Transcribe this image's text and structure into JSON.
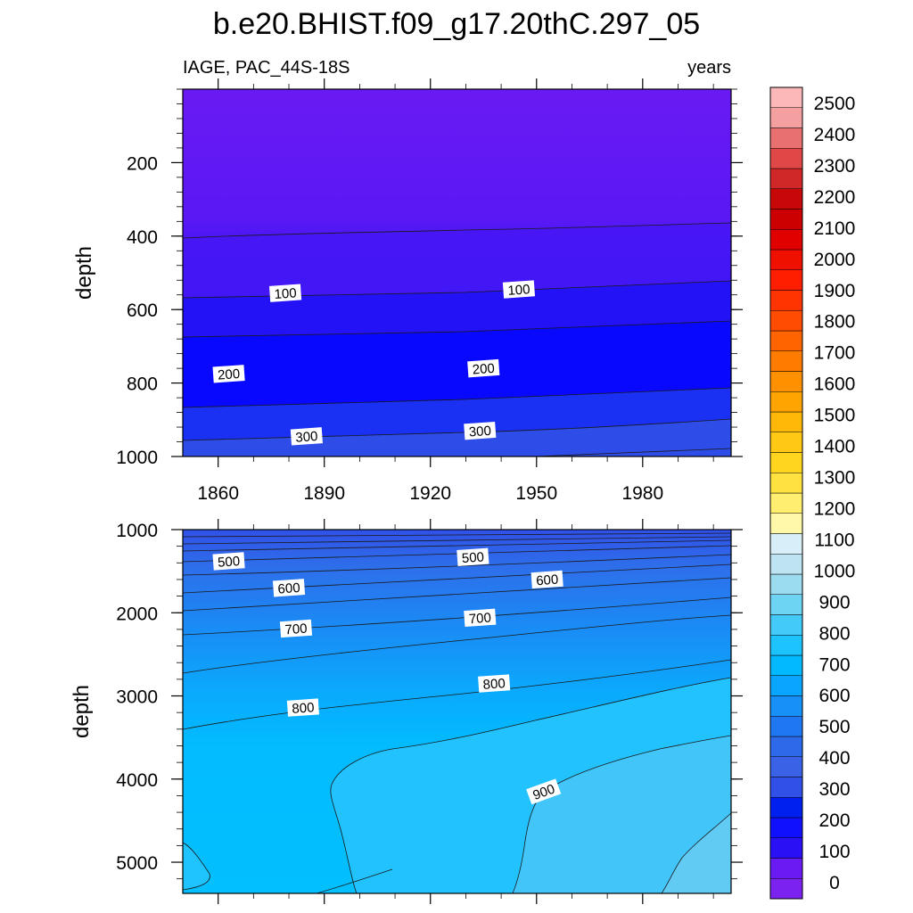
{
  "chart_data": {
    "type": "contour",
    "title": "b.e20.BHIST.f09_g17.20thC.297_05",
    "subtitle_left": "IAGE, PAC_44S-18S",
    "subtitle_right": "years",
    "ylabel": "depth",
    "xlim": [
      1850,
      2005
    ],
    "x_ticks": [
      1860,
      1890,
      1920,
      1950,
      1980
    ],
    "panels": [
      {
        "name": "upper",
        "ylim": [
          0,
          1000
        ],
        "y_ticks": [
          200,
          400,
          600,
          800,
          1000
        ],
        "contour_labels": [
          {
            "text": "100",
            "x": 1879,
            "depth": 555
          },
          {
            "text": "100",
            "x": 1945,
            "depth": 545
          },
          {
            "text": "200",
            "x": 1863,
            "depth": 775
          },
          {
            "text": "200",
            "x": 1935,
            "depth": 760
          },
          {
            "text": "300",
            "x": 1885,
            "depth": 945
          },
          {
            "text": "300",
            "x": 1934,
            "depth": 930
          }
        ]
      },
      {
        "name": "lower",
        "ylim": [
          1000,
          5375
        ],
        "y_ticks": [
          1000,
          2000,
          3000,
          4000,
          5000
        ],
        "contour_labels": [
          {
            "text": "500",
            "x": 1863,
            "depth": 1380
          },
          {
            "text": "500",
            "x": 1932,
            "depth": 1330
          },
          {
            "text": "600",
            "x": 1880,
            "depth": 1700
          },
          {
            "text": "600",
            "x": 1953,
            "depth": 1600
          },
          {
            "text": "700",
            "x": 1882,
            "depth": 2190
          },
          {
            "text": "700",
            "x": 1934,
            "depth": 2060
          },
          {
            "text": "800",
            "x": 1884,
            "depth": 3140
          },
          {
            "text": "800",
            "x": 1938,
            "depth": 2850
          },
          {
            "text": "900",
            "x": 1952,
            "depth": 4150
          }
        ]
      }
    ],
    "colorbar": {
      "levels": [
        0,
        100,
        200,
        300,
        400,
        500,
        600,
        700,
        800,
        900,
        1000,
        1100,
        1200,
        1300,
        1400,
        1500,
        1600,
        1700,
        1800,
        1900,
        2000,
        2100,
        2200,
        2300,
        2400,
        2500
      ],
      "colors": [
        "#7B22F0",
        "#6A1AF3",
        "#2A10F5",
        "#1010FF",
        "#0020F0",
        "#3050E8",
        "#3A62E6",
        "#2C6AEA",
        "#1F78F2",
        "#1790F8",
        "#0AA5FF",
        "#02B8FF",
        "#1CC3FF",
        "#44CAF8",
        "#6ED4F4",
        "#9CDCF0",
        "#BEE4F4",
        "#D8EEF8",
        "#FFF8A8",
        "#FFEE70",
        "#FFE240",
        "#FFD520",
        "#FFC814",
        "#FFB808",
        "#FFA400",
        "#FF9000",
        "#FF7C00",
        "#FF6400",
        "#FF4C00",
        "#FF3400",
        "#FF1E00",
        "#F01000",
        "#E00000",
        "#CC0000",
        "#C80808",
        "#D02828",
        "#E04848",
        "#E87070",
        "#F4A0A0",
        "#FCB8B8"
      ]
    }
  }
}
